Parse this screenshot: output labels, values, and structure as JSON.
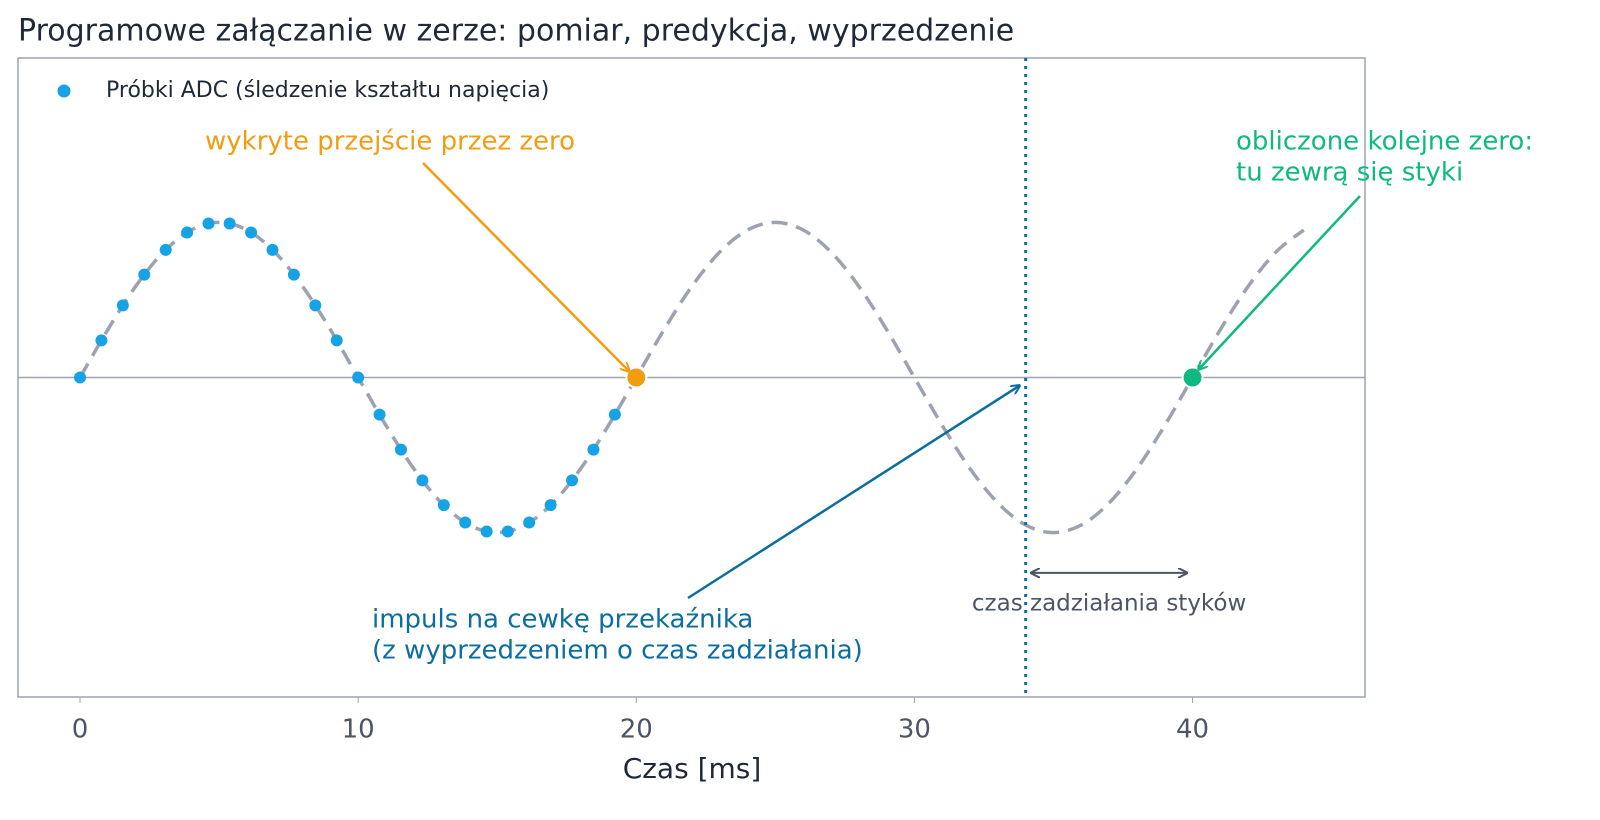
{
  "chart_data": {
    "type": "scatter",
    "title": "Programowe załączanie w zerze: pomiar, predykcja, wyprzedzenie",
    "xlabel": "Czas [ms]",
    "xlim": [
      -2.23,
      46.2
    ],
    "ylim": [
      -2.06,
      2.06
    ],
    "xticks": [
      0,
      10,
      20,
      30,
      40
    ],
    "legend": "upper left",
    "series": [
      {
        "name": "Próbki ADC (śledzenie kształtu napięcia)",
        "color": "#16a3e6",
        "x": [
          0,
          0.77,
          1.54,
          2.31,
          3.08,
          3.85,
          4.62,
          5.38,
          6.15,
          6.92,
          7.69,
          8.46,
          9.23,
          10,
          10.77,
          11.54,
          12.31,
          13.08,
          13.85,
          14.62,
          15.38,
          16.15,
          16.92,
          17.69,
          18.46,
          19.23
        ],
        "values": [
          0,
          0.239,
          0.465,
          0.663,
          0.823,
          0.935,
          0.993,
          0.993,
          0.935,
          0.823,
          0.663,
          0.465,
          0.239,
          0,
          -0.239,
          -0.465,
          -0.663,
          -0.823,
          -0.935,
          -0.993,
          -0.993,
          -0.935,
          -0.823,
          -0.663,
          -0.465,
          -0.239
        ]
      }
    ],
    "curve": {
      "color": "#9ca3af",
      "x": [
        0,
        1,
        2,
        3,
        4,
        5,
        6,
        7,
        8,
        9,
        10,
        11,
        12,
        13,
        14,
        15,
        16,
        17,
        18,
        19,
        20,
        21,
        22,
        23,
        24,
        25,
        26,
        27,
        28,
        29,
        30,
        31,
        32,
        33,
        34,
        35,
        36,
        37,
        38,
        39,
        40,
        41,
        42,
        43,
        44
      ],
      "values": [
        0,
        0.309,
        0.588,
        0.809,
        0.951,
        1,
        0.951,
        0.809,
        0.588,
        0.309,
        0,
        -0.309,
        -0.588,
        -0.809,
        -0.951,
        -1,
        -0.951,
        -0.809,
        -0.588,
        -0.309,
        0,
        0.309,
        0.588,
        0.809,
        0.951,
        1,
        0.951,
        0.809,
        0.588,
        0.309,
        0,
        -0.309,
        -0.588,
        -0.809,
        -0.951,
        -1,
        -0.951,
        -0.809,
        -0.588,
        -0.309,
        0,
        0.309,
        0.588,
        0.809,
        0.951
      ]
    },
    "zero_line": {
      "value": 0,
      "color": "#9ca3af"
    },
    "markers": [
      {
        "x": 20,
        "y": 0,
        "color": "#f39c12"
      },
      {
        "x": 40,
        "y": 0,
        "color": "#10b981"
      }
    ],
    "vline": {
      "x": 34,
      "color": "#0b6e9e"
    },
    "span": {
      "x": [
        34.2,
        39.8
      ],
      "y": -1.26,
      "color": "#4b5563",
      "label": "czas zadziałania styków"
    },
    "annotations": [
      {
        "lines": [
          "wykryte przejście przez zero"
        ],
        "color": "#f39c12"
      },
      {
        "lines": [
          "impuls na cewkę przekaźnika",
          "(z wyprzedzeniem o czas zadziałania)"
        ],
        "color": "#0b6e9e"
      },
      {
        "lines": [
          "obliczone kolejne zero:",
          "tu zewrą się styki"
        ],
        "color": "#10b981"
      }
    ]
  }
}
